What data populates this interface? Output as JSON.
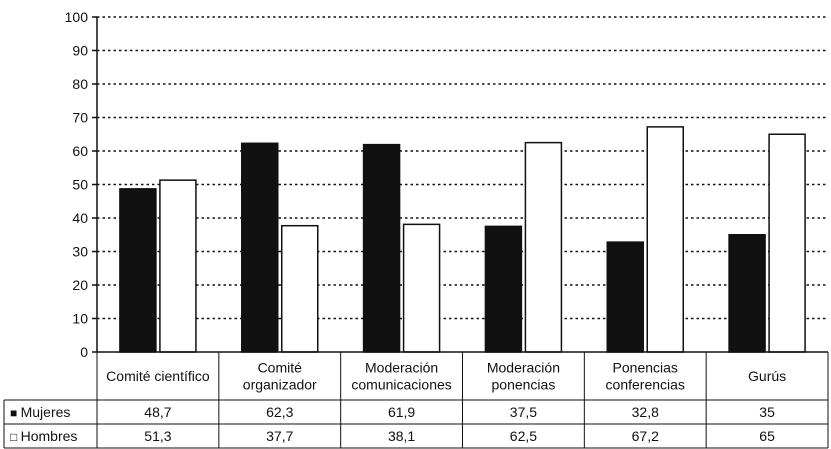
{
  "chart_data": {
    "type": "bar",
    "title": "",
    "xlabel": "",
    "ylabel": "",
    "ylim": [
      0,
      100
    ],
    "yticks": [
      0,
      10,
      20,
      30,
      40,
      50,
      60,
      70,
      80,
      90,
      100
    ],
    "grid": true,
    "gridline_style": "dotted",
    "categories": [
      [
        "Comité científico"
      ],
      [
        "Comité",
        "organizador"
      ],
      [
        "Moderación",
        "comunicaciones"
      ],
      [
        "Moderación",
        "ponencias"
      ],
      [
        "Ponencias",
        "conferencias"
      ],
      [
        "Gurús"
      ]
    ],
    "series": [
      {
        "name": "Mujeres",
        "marker": "■",
        "color": "#111111",
        "values": [
          48.7,
          62.3,
          61.9,
          37.5,
          32.8,
          35
        ],
        "labels": [
          "48,7",
          "62,3",
          "61,9",
          "37,5",
          "32,8",
          "35"
        ]
      },
      {
        "name": "Hombres",
        "marker": "□",
        "color": "#ffffff",
        "values": [
          51.3,
          37.7,
          38.1,
          62.5,
          67.2,
          65
        ],
        "labels": [
          "51,3",
          "37,7",
          "38,1",
          "62,5",
          "67,2",
          "65"
        ]
      }
    ],
    "legend": "in-table-left"
  }
}
